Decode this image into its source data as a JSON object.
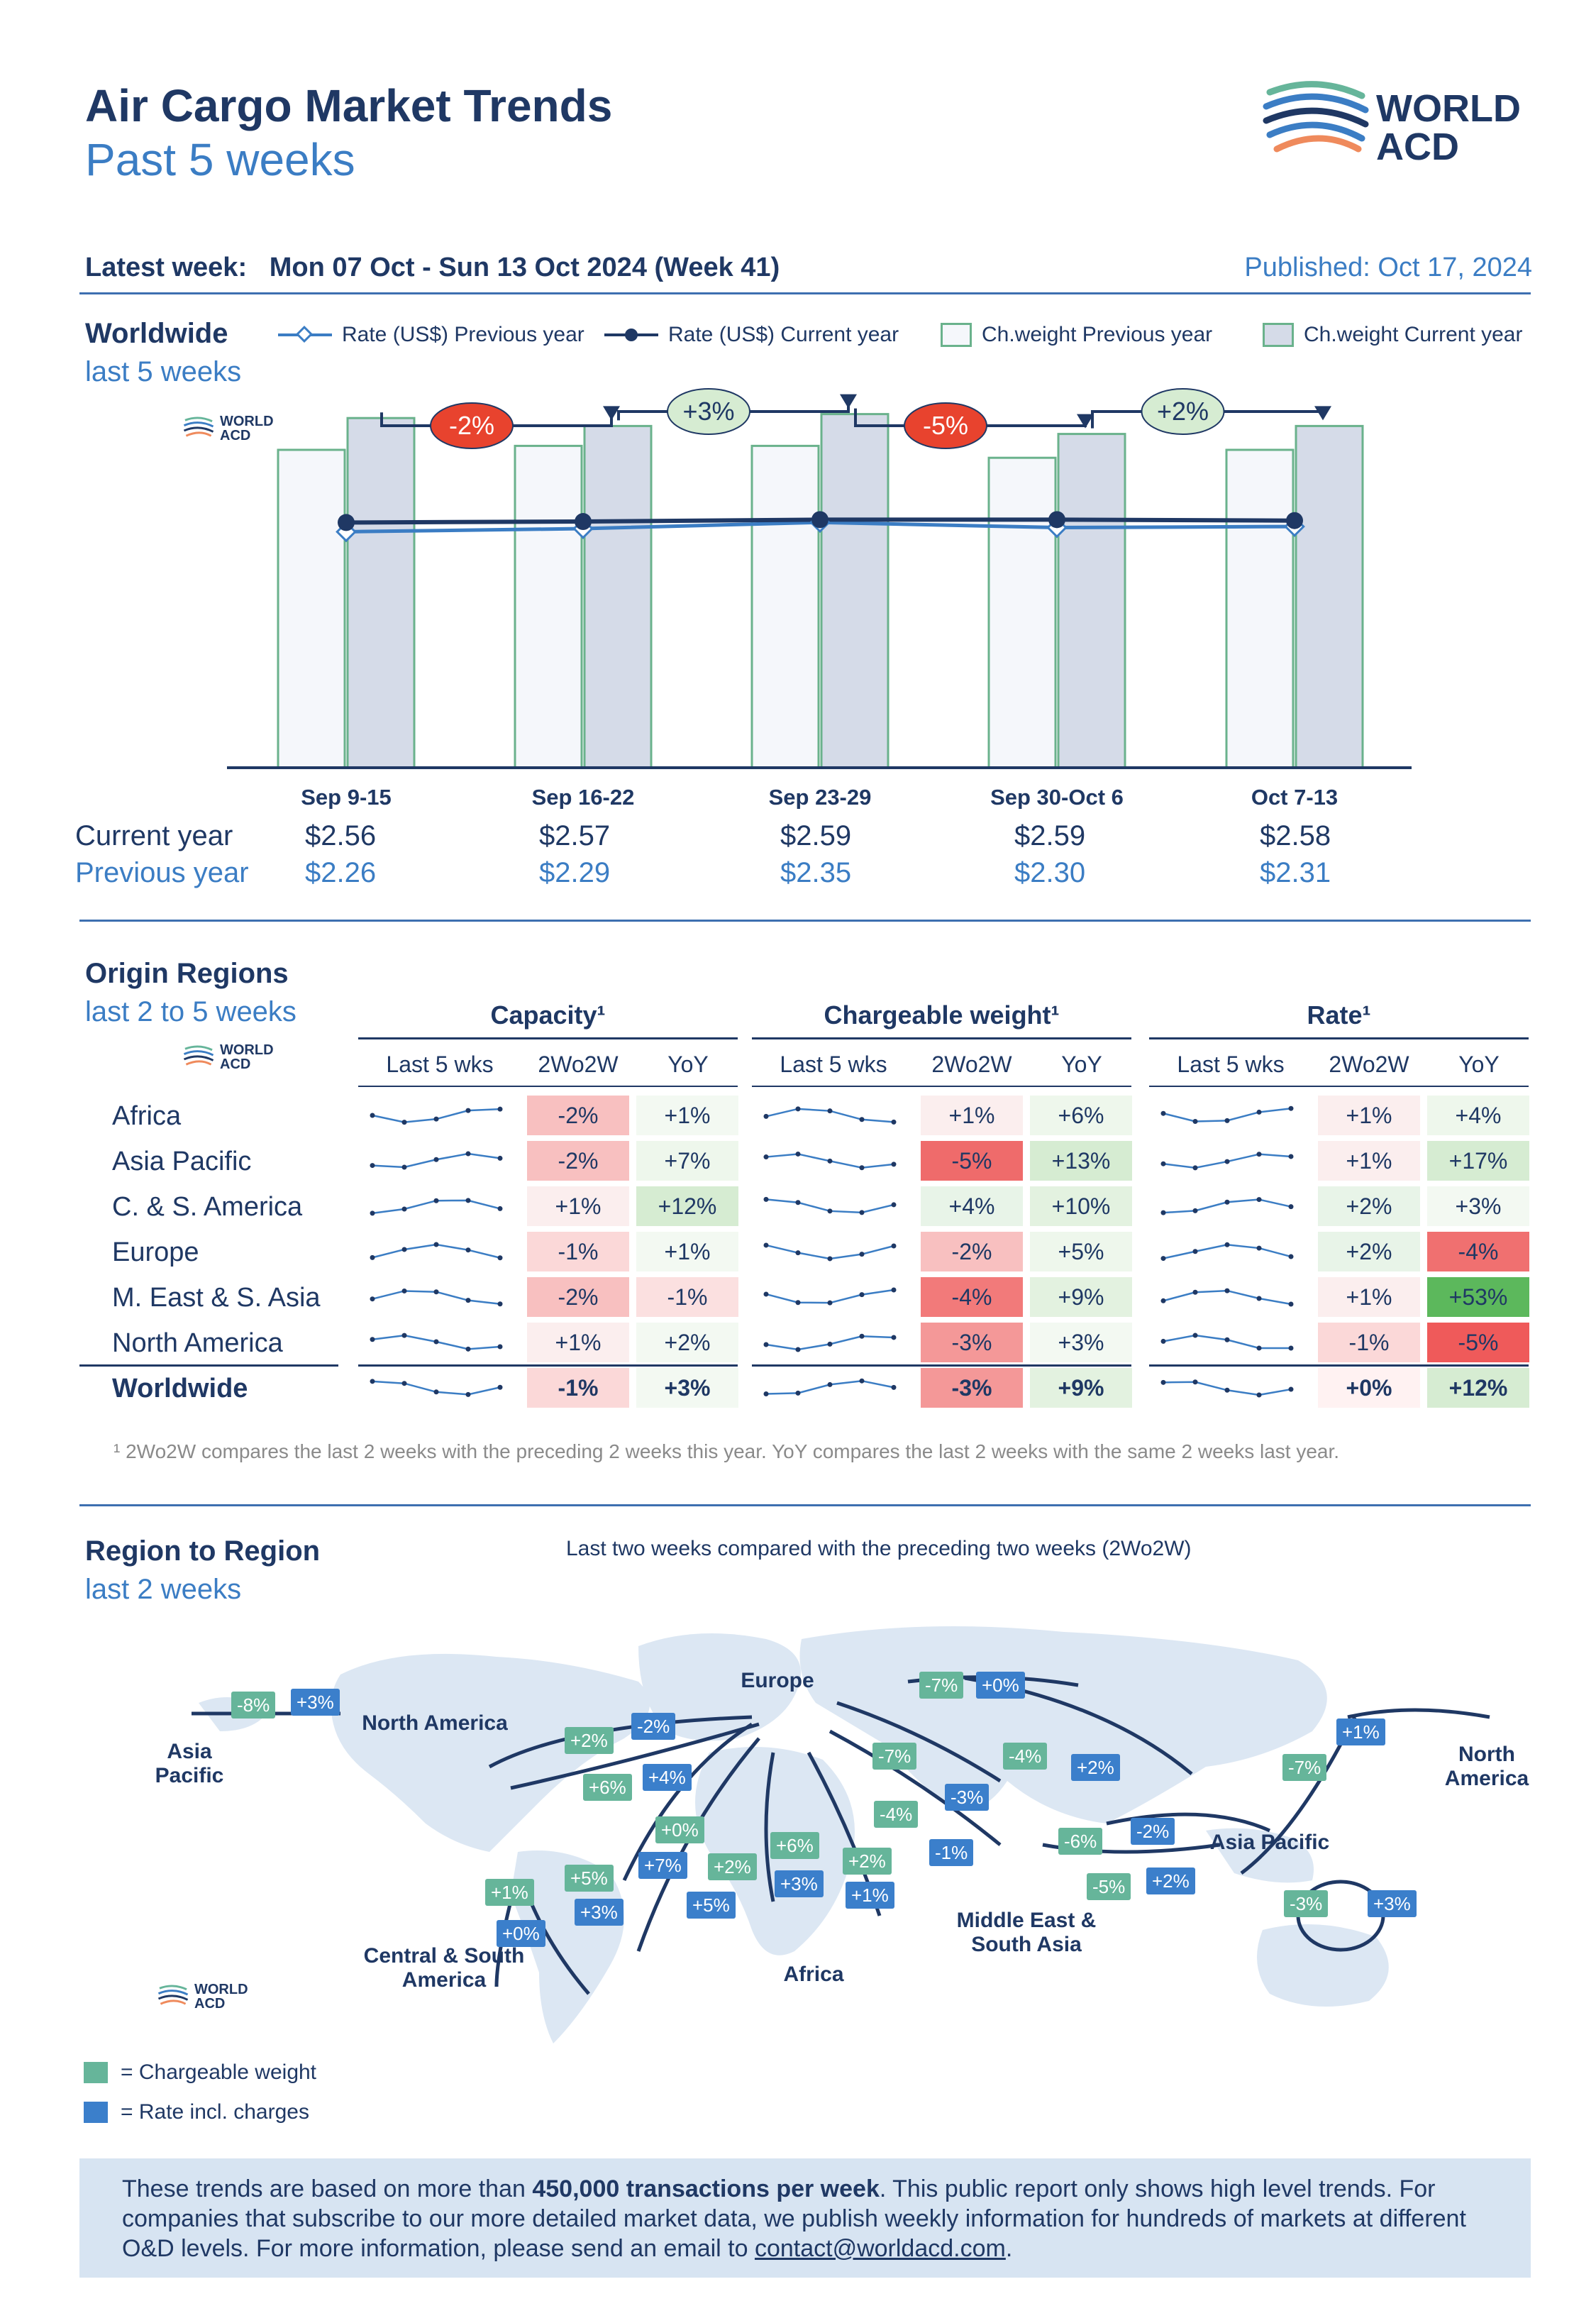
{
  "header": {
    "title": "Air Cargo Market Trends",
    "subtitle": "Past 5 weeks",
    "logo_line1": "WORLD",
    "logo_line2": "ACD",
    "latest_label": "Latest week:",
    "latest_value": "Mon 07 Oct - Sun 13 Oct 2024 (Week 41)",
    "published": "Published: Oct 17, 2024"
  },
  "worldwide": {
    "title": "Worldwide",
    "subtitle": "last 5 weeks",
    "legend": {
      "rate_prev": "Rate (US$) Previous year",
      "rate_curr": "Rate (US$) Current year",
      "cw_prev": "Ch.weight Previous year",
      "cw_curr": "Ch.weight Current year"
    },
    "current_year_label": "Current year",
    "previous_year_label": "Previous year"
  },
  "chart_data": {
    "type": "bar",
    "categories": [
      "Sep 9-15",
      "Sep 16-22",
      "Sep 23-29",
      "Sep 30-Oct 6",
      "Oct 7-13"
    ],
    "series": [
      {
        "name": "Ch.weight Previous year",
        "kind": "bar",
        "values": [
          0.8,
          0.81,
          0.81,
          0.78,
          0.8
        ]
      },
      {
        "name": "Ch.weight Current year",
        "kind": "bar",
        "values": [
          0.88,
          0.86,
          0.89,
          0.84,
          0.86
        ]
      },
      {
        "name": "Rate (US$) Current year",
        "kind": "line",
        "values": [
          2.56,
          2.57,
          2.59,
          2.59,
          2.58
        ]
      },
      {
        "name": "Rate (US$) Previous year",
        "kind": "line",
        "values": [
          2.26,
          2.29,
          2.35,
          2.3,
          2.31
        ]
      }
    ],
    "current_year_labels": [
      "$2.56",
      "$2.57",
      "$2.59",
      "$2.59",
      "$2.58"
    ],
    "previous_year_labels": [
      "$2.26",
      "$2.29",
      "$2.35",
      "$2.30",
      "$2.31"
    ],
    "week_changes": [
      "-2%",
      "+3%",
      "-5%",
      "+2%"
    ],
    "week_change_colors": [
      "#e8432e",
      "#d6ecd2",
      "#e8432e",
      "#d6ecd2"
    ],
    "colors": {
      "bar_prev": "#f5f7fb",
      "bar_curr": "#d5dbe8",
      "bar_border": "#6ab28c",
      "line_curr": "#1f3864",
      "line_prev": "#3b7dc4"
    }
  },
  "origin": {
    "title": "Origin Regions",
    "subtitle": "last 2 to 5 weeks",
    "groups": [
      "Capacity¹",
      "Chargeable weight¹",
      "Rate¹"
    ],
    "subheaders": [
      "Last 5 wks",
      "2Wo2W",
      "YoY"
    ],
    "rows": [
      {
        "region": "Africa",
        "cap": [
          "-2%",
          "+1%"
        ],
        "cw": [
          "+1%",
          "+6%"
        ],
        "rate": [
          "+1%",
          "+4%"
        ]
      },
      {
        "region": "Asia Pacific",
        "cap": [
          "-2%",
          "+7%"
        ],
        "cw": [
          "-5%",
          "+13%"
        ],
        "rate": [
          "+1%",
          "+17%"
        ]
      },
      {
        "region": "C. & S. America",
        "cap": [
          "+1%",
          "+12%"
        ],
        "cw": [
          "+4%",
          "+10%"
        ],
        "rate": [
          "+2%",
          "+3%"
        ]
      },
      {
        "region": "Europe",
        "cap": [
          "-1%",
          "+1%"
        ],
        "cw": [
          "-2%",
          "+5%"
        ],
        "rate": [
          "+2%",
          "-4%"
        ]
      },
      {
        "region": "M. East & S. Asia",
        "cap": [
          "-2%",
          "-1%"
        ],
        "cw": [
          "-4%",
          "+9%"
        ],
        "rate": [
          "+1%",
          "+53%"
        ]
      },
      {
        "region": "North America",
        "cap": [
          "+1%",
          "+2%"
        ],
        "cw": [
          "-3%",
          "+3%"
        ],
        "rate": [
          "-1%",
          "-5%"
        ]
      },
      {
        "region": "Worldwide",
        "cap": [
          "-1%",
          "+3%"
        ],
        "cw": [
          "-3%",
          "+9%"
        ],
        "rate": [
          "+0%",
          "+12%"
        ]
      }
    ],
    "footnote": "¹ 2Wo2W compares the last 2 weeks with the preceding 2 weeks this year. YoY compares the last 2 weeks with the same 2 weeks last year."
  },
  "r2r": {
    "title": "Region to Region",
    "subtitle": "last 2 weeks",
    "caption": "Last two weeks compared with the preceding two weeks (2Wo2W)",
    "labels": {
      "asia_pacific_left": "Asia Pacific",
      "north_america_top": "North America",
      "europe": "Europe",
      "north_america_right": "North America",
      "asia_pacific_right": "Asia Pacific",
      "middle_east": "Middle East & South Asia",
      "africa": "Africa",
      "csam": "Central & South America"
    },
    "badges": [
      {
        "kind": "g",
        "text": "-8%"
      },
      {
        "kind": "b",
        "text": "+3%"
      },
      {
        "kind": "g",
        "text": "+2%"
      },
      {
        "kind": "b",
        "text": "-2%"
      },
      {
        "kind": "g",
        "text": "+6%"
      },
      {
        "kind": "b",
        "text": "+4%"
      },
      {
        "kind": "g",
        "text": "-7%"
      },
      {
        "kind": "b",
        "text": "+0%"
      },
      {
        "kind": "b",
        "text": "+1%"
      },
      {
        "kind": "g",
        "text": "-7%"
      },
      {
        "kind": "g",
        "text": "-7%"
      },
      {
        "kind": "g",
        "text": "-4%"
      },
      {
        "kind": "b",
        "text": "+2%"
      },
      {
        "kind": "b",
        "text": "-3%"
      },
      {
        "kind": "g",
        "text": "-4%"
      },
      {
        "kind": "b",
        "text": "-1%"
      },
      {
        "kind": "g",
        "text": "-6%"
      },
      {
        "kind": "b",
        "text": "-2%"
      },
      {
        "kind": "g",
        "text": "-5%"
      },
      {
        "kind": "b",
        "text": "+2%"
      },
      {
        "kind": "g",
        "text": "-3%"
      },
      {
        "kind": "b",
        "text": "+3%"
      },
      {
        "kind": "g",
        "text": "+0%"
      },
      {
        "kind": "b",
        "text": "+7%"
      },
      {
        "kind": "g",
        "text": "+2%"
      },
      {
        "kind": "b",
        "text": "+5%"
      },
      {
        "kind": "g",
        "text": "+6%"
      },
      {
        "kind": "b",
        "text": "+3%"
      },
      {
        "kind": "g",
        "text": "+2%"
      },
      {
        "kind": "b",
        "text": "+1%"
      },
      {
        "kind": "g",
        "text": "+5%"
      },
      {
        "kind": "b",
        "text": "+3%"
      },
      {
        "kind": "g",
        "text": "+1%"
      },
      {
        "kind": "b",
        "text": "+0%"
      }
    ],
    "legend_cw": "= Chargeable weight",
    "legend_rate": "= Rate incl. charges"
  },
  "bottom": {
    "text_a": "These trends are based on more than ",
    "text_bold": "450,000 transactions per week",
    "text_b": ". This public report only shows high level trends. For companies that subscribe to our more detailed market data, we publish weekly information for hundreds of markets at different O&D levels. For more information, please send an email to ",
    "email": "contact@worldacd.com",
    "text_c": "."
  }
}
